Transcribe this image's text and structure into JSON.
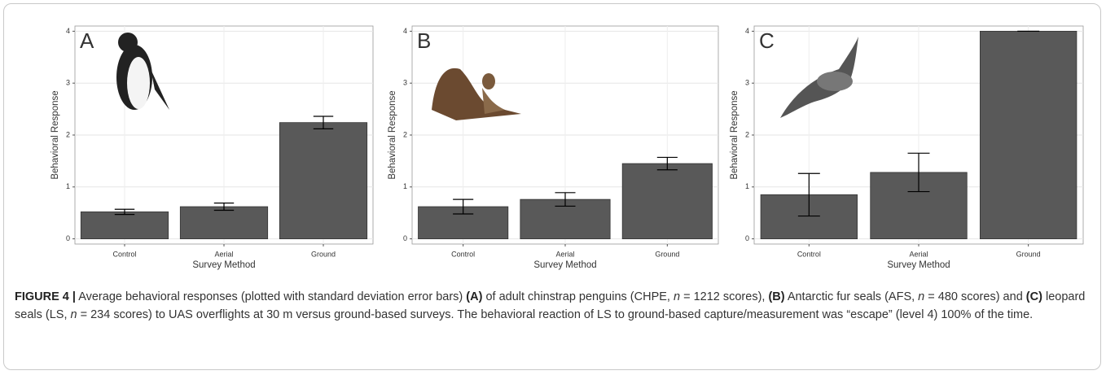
{
  "chart_data": [
    {
      "type": "bar",
      "panel_label": "A",
      "categories": [
        "Control",
        "Aerial",
        "Ground"
      ],
      "values": [
        0.52,
        0.62,
        2.24
      ],
      "errors": [
        0.05,
        0.07,
        0.12
      ],
      "color": "#595959",
      "ylim": [
        -0.1,
        4.1
      ],
      "yticks": [
        0,
        1,
        2,
        3,
        4
      ],
      "grid": true,
      "x_label": "Survey Method",
      "y_label": "Behavioral Response"
    },
    {
      "type": "bar",
      "panel_label": "B",
      "categories": [
        "Control",
        "Aerial",
        "Ground"
      ],
      "values": [
        0.62,
        0.76,
        1.45
      ],
      "errors": [
        0.14,
        0.13,
        0.12
      ],
      "color": "#595959",
      "ylim": [
        -0.1,
        4.1
      ],
      "yticks": [
        0,
        1,
        2,
        3,
        4
      ],
      "grid": true,
      "x_label": "Survey Method",
      "y_label": "Behavioral Response"
    },
    {
      "type": "bar",
      "panel_label": "C",
      "categories": [
        "Control",
        "Aerial",
        "Ground"
      ],
      "values": [
        0.85,
        1.28,
        4.0
      ],
      "errors": [
        0.41,
        0.37,
        0
      ],
      "color": "#595959",
      "ylim": [
        -0.1,
        4.1
      ],
      "yticks": [
        0,
        1,
        2,
        3,
        4
      ],
      "grid": true,
      "x_label": "Survey Method",
      "y_label": "Behavioral Response"
    }
  ],
  "caption": [
    {
      "text": "FIGURE 4 |",
      "bold": true
    },
    {
      "text": " Average behavioral responses (plotted with standard deviation error bars) "
    },
    {
      "text": "(A)",
      "bold": true
    },
    {
      "text": " of adult chinstrap penguins (CHPE, "
    },
    {
      "text": "n",
      "italic": true
    },
    {
      "text": " = 1212 scores), "
    },
    {
      "text": "(B)",
      "bold": true
    },
    {
      "text": " Antarctic fur seals (AFS, "
    },
    {
      "text": "n",
      "italic": true
    },
    {
      "text": " = 480 scores) and "
    },
    {
      "text": "(C)",
      "bold": true
    },
    {
      "text": " leopard seals (LS, "
    },
    {
      "text": "n",
      "italic": true
    },
    {
      "text": " = 234 scores) to UAS overflights at 30 m versus ground-based surveys. The behavioral reaction of LS to ground-based capture/measurement was “escape” (level 4) 100% of the time."
    }
  ]
}
